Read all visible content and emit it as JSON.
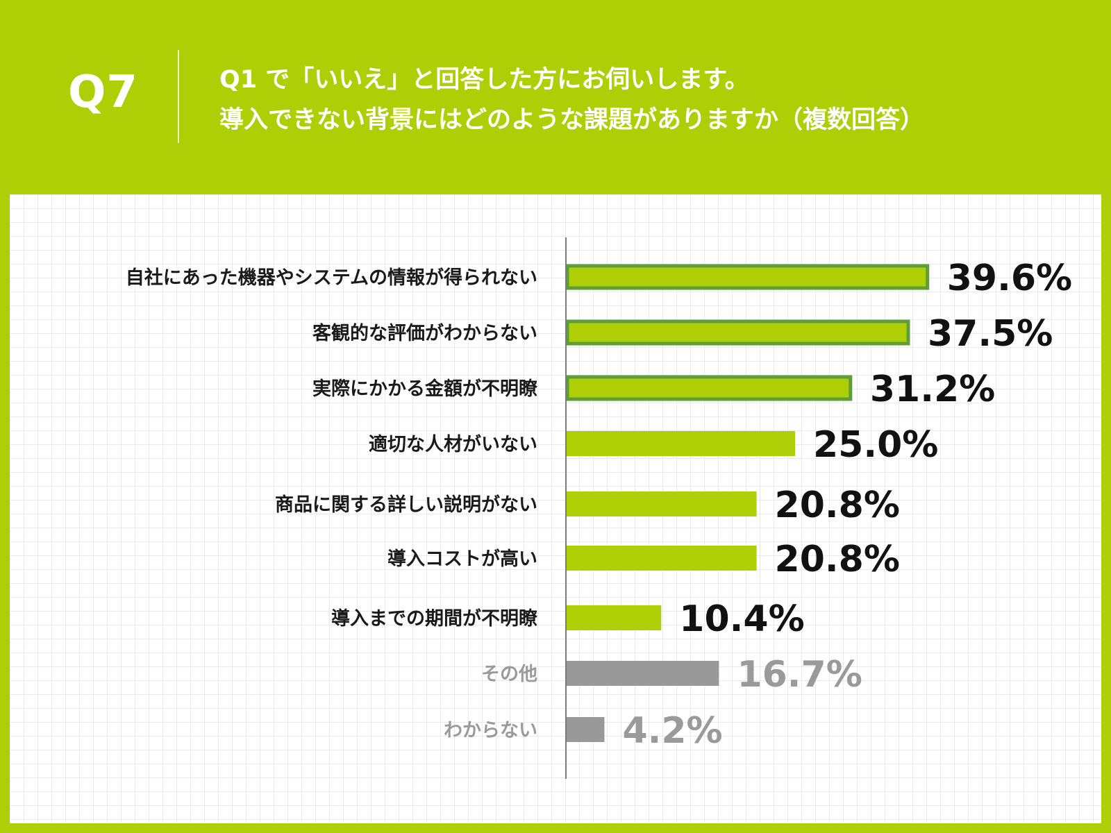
{
  "header": {
    "question_number": "Q7",
    "title_line1": "Q1 で「いいえ」と回答した方にお伺いします。",
    "title_line2": "導入できない背景にはどのような課題がありますか（複数回答）"
  },
  "colors": {
    "background": "#AECE06",
    "bar_fill": "#AECE06",
    "bar_outline_highlight": "#5E9E3A",
    "bar_other": "#999999",
    "label_text": "#1a1a1a",
    "label_text_muted": "#9a9a9a",
    "axis_line": "#7a7a7a"
  },
  "chart_data": {
    "type": "bar",
    "orientation": "horizontal",
    "unit": "%",
    "categories": [
      "自社にあった機器やシステムの情報が得られない",
      "客観的な評価がわからない",
      "実際にかかる金額が不明瞭",
      "適切な人材がいない",
      "商品に関する詳しい説明がない",
      "導入コストが高い",
      "導入までの期間が不明瞭",
      "その他",
      "わからない"
    ],
    "values": [
      39.6,
      37.5,
      31.2,
      25.0,
      20.8,
      20.8,
      10.4,
      16.7,
      4.2
    ],
    "value_labels": [
      "39.6%",
      "37.5%",
      "31.2%",
      "25.0%",
      "20.8%",
      "20.8%",
      "10.4%",
      "16.7%",
      "4.2%"
    ],
    "highlighted": [
      true,
      true,
      true,
      false,
      false,
      false,
      false,
      false,
      false
    ],
    "muted": [
      false,
      false,
      false,
      false,
      false,
      false,
      false,
      true,
      true
    ],
    "xlim": [
      0,
      40
    ],
    "grid": true,
    "legend": "none"
  }
}
